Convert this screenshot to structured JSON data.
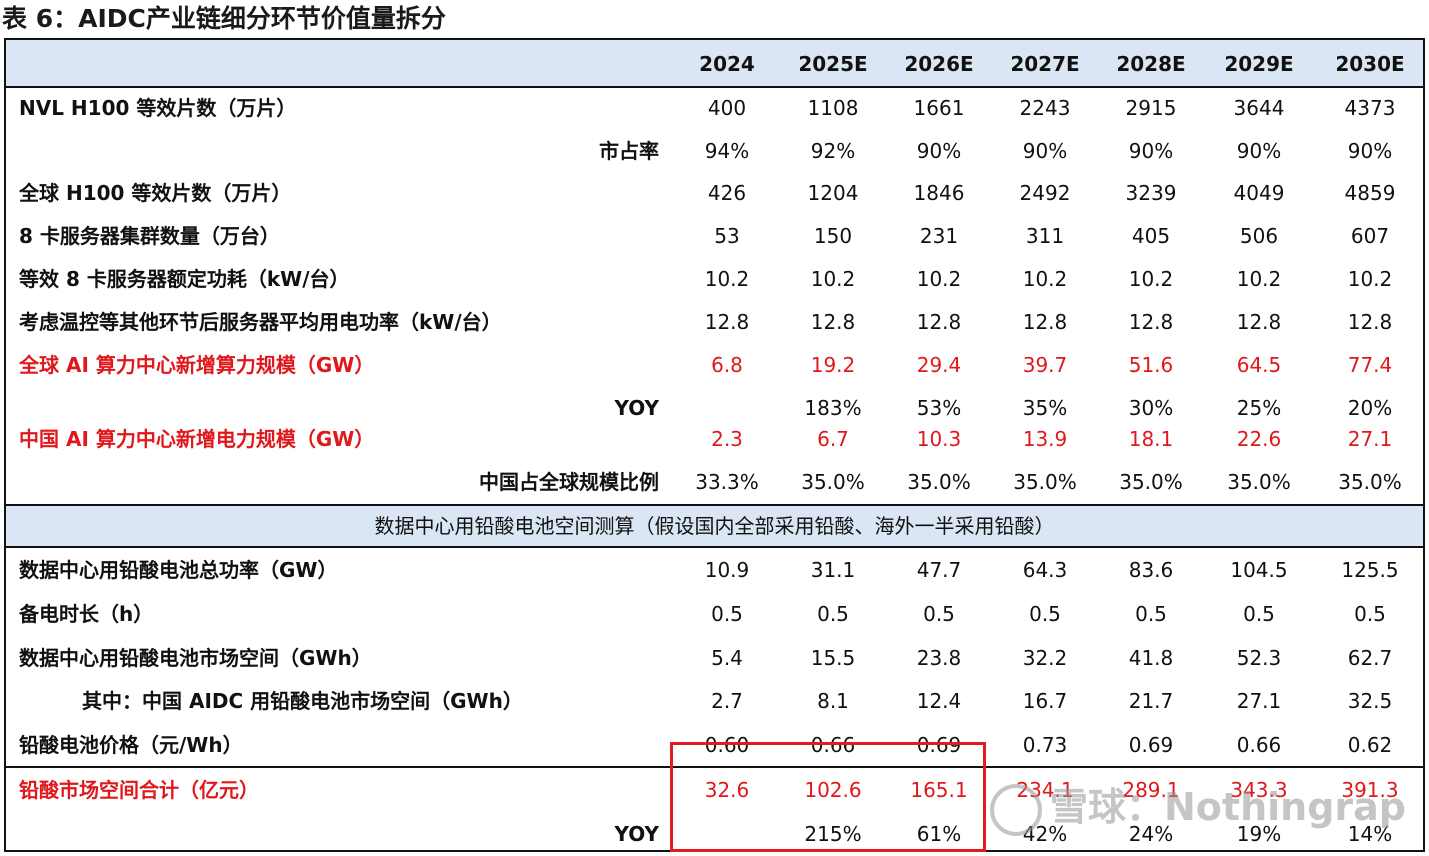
{
  "title": "表 6：AIDC产业链细分环节价值量拆分",
  "years": [
    "2024",
    "2025E",
    "2026E",
    "2027E",
    "2028E",
    "2029E",
    "2030E"
  ],
  "rows": [
    {
      "label": "NVL H100 等效片数（万片）",
      "values": [
        "400",
        "1108",
        "1661",
        "2243",
        "2915",
        "3644",
        "4373"
      ]
    },
    {
      "label": "市占率",
      "values": [
        "94%",
        "92%",
        "90%",
        "90%",
        "90%",
        "90%",
        "90%"
      ]
    },
    {
      "label": "全球 H100 等效片数（万片）",
      "values": [
        "426",
        "1204",
        "1846",
        "2492",
        "3239",
        "4049",
        "4859"
      ]
    },
    {
      "label": "8 卡服务器集群数量（万台）",
      "values": [
        "53",
        "150",
        "231",
        "311",
        "405",
        "506",
        "607"
      ]
    },
    {
      "label": "等效 8 卡服务器额定功耗（kW/台）",
      "values": [
        "10.2",
        "10.2",
        "10.2",
        "10.2",
        "10.2",
        "10.2",
        "10.2"
      ]
    },
    {
      "label": "考虑温控等其他环节后服务器平均用电功率（kW/台）",
      "values": [
        "12.8",
        "12.8",
        "12.8",
        "12.8",
        "12.8",
        "12.8",
        "12.8"
      ]
    },
    {
      "label": "全球 AI 算力中心新增算力规模（GW）",
      "values": [
        "6.8",
        "19.2",
        "29.4",
        "39.7",
        "51.6",
        "64.5",
        "77.4"
      ]
    },
    {
      "label": "YOY",
      "values": [
        "",
        "183%",
        "53%",
        "35%",
        "30%",
        "25%",
        "20%"
      ]
    },
    {
      "label": "中国 AI 算力中心新增电力规模（GW）",
      "values": [
        "2.3",
        "6.7",
        "10.3",
        "13.9",
        "18.1",
        "22.6",
        "27.1"
      ]
    },
    {
      "label": "中国占全球规模比例",
      "values": [
        "33.3%",
        "35.0%",
        "35.0%",
        "35.0%",
        "35.0%",
        "35.0%",
        "35.0%"
      ]
    },
    {
      "label": "数据中心用铅酸电池总功率（GW）",
      "values": [
        "10.9",
        "31.1",
        "47.7",
        "64.3",
        "83.6",
        "104.5",
        "125.5"
      ]
    },
    {
      "label": "备电时长（h）",
      "values": [
        "0.5",
        "0.5",
        "0.5",
        "0.5",
        "0.5",
        "0.5",
        "0.5"
      ]
    },
    {
      "label": "数据中心用铅酸电池市场空间（GWh）",
      "values": [
        "5.4",
        "15.5",
        "23.8",
        "32.2",
        "41.8",
        "52.3",
        "62.7"
      ]
    },
    {
      "label": "其中：中国 AIDC 用铅酸电池市场空间（GWh）",
      "values": [
        "2.7",
        "8.1",
        "12.4",
        "16.7",
        "21.7",
        "27.1",
        "32.5"
      ]
    },
    {
      "label": "铅酸电池价格（元/Wh）",
      "values": [
        "0.60",
        "0.66",
        "0.69",
        "0.73",
        "0.69",
        "0.66",
        "0.62"
      ]
    },
    {
      "label": "铅酸市场空间合计（亿元）",
      "values": [
        "32.6",
        "102.6",
        "165.1",
        "234.1",
        "289.1",
        "343.3",
        "391.3"
      ]
    },
    {
      "label": "YOY",
      "values": [
        "",
        "215%",
        "61%",
        "42%",
        "24%",
        "19%",
        "14%"
      ]
    }
  ],
  "section_header": "数据中心用铅酸电池空间测算（假设国内全部采用铅酸、海外一半采用铅酸）",
  "watermark": "雪球：Nothingrap",
  "colors": {
    "accent_red": "#e0181b",
    "header_band": "#dae6f4",
    "highlight_box": "#e11d21"
  }
}
